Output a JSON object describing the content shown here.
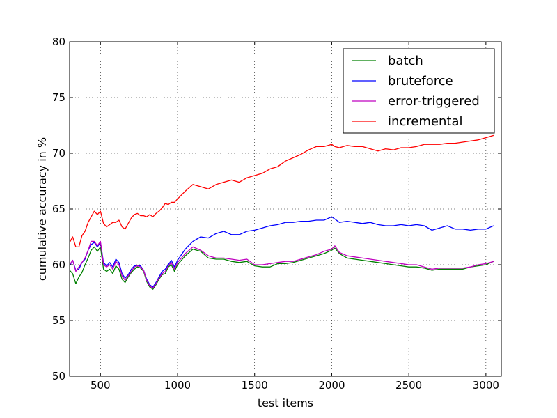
{
  "chart_data": {
    "type": "line",
    "xlabel": "test items",
    "ylabel": "cumulative accuracy in %",
    "xlim": [
      300,
      3100
    ],
    "ylim": [
      50,
      80
    ],
    "xticks": [
      500,
      1000,
      1500,
      2000,
      2500,
      3000
    ],
    "yticks": [
      50,
      55,
      60,
      65,
      70,
      75,
      80
    ],
    "grid": true,
    "legend_position": "top-right",
    "series": [
      {
        "name": "batch",
        "color": "#008000",
        "x": [
          300,
          320,
          340,
          360,
          380,
          400,
          420,
          440,
          460,
          480,
          500,
          520,
          540,
          560,
          580,
          600,
          620,
          640,
          660,
          680,
          700,
          720,
          740,
          760,
          780,
          800,
          820,
          840,
          860,
          880,
          900,
          920,
          940,
          960,
          980,
          1000,
          1050,
          1100,
          1150,
          1200,
          1250,
          1300,
          1350,
          1400,
          1450,
          1500,
          1550,
          1600,
          1650,
          1700,
          1750,
          1800,
          1850,
          1900,
          1950,
          2000,
          2020,
          2050,
          2100,
          2150,
          2200,
          2250,
          2300,
          2350,
          2400,
          2450,
          2500,
          2550,
          2600,
          2650,
          2700,
          2750,
          2800,
          2850,
          2900,
          2950,
          3000,
          3050
        ],
        "y": [
          59.5,
          59.2,
          58.3,
          58.9,
          59.3,
          60.0,
          60.6,
          61.3,
          61.6,
          61.2,
          61.6,
          59.6,
          59.4,
          59.6,
          59.2,
          59.9,
          59.6,
          58.7,
          58.4,
          58.9,
          59.3,
          59.6,
          59.8,
          59.7,
          59.4,
          58.5,
          58.0,
          57.8,
          58.2,
          58.7,
          59.1,
          59.2,
          59.8,
          60.0,
          59.4,
          60.0,
          60.8,
          61.4,
          61.2,
          60.6,
          60.5,
          60.5,
          60.3,
          60.2,
          60.3,
          59.9,
          59.8,
          59.8,
          60.1,
          60.1,
          60.2,
          60.4,
          60.6,
          60.8,
          61.0,
          61.3,
          61.5,
          61.0,
          60.6,
          60.5,
          60.4,
          60.3,
          60.2,
          60.1,
          60.0,
          59.9,
          59.8,
          59.8,
          59.7,
          59.5,
          59.6,
          59.6,
          59.6,
          59.6,
          59.8,
          59.9,
          60.0,
          60.3
        ]
      },
      {
        "name": "bruteforce",
        "color": "#0000ff",
        "x": [
          300,
          320,
          340,
          360,
          380,
          400,
          420,
          440,
          460,
          480,
          500,
          520,
          540,
          560,
          580,
          600,
          620,
          640,
          660,
          680,
          700,
          720,
          740,
          760,
          780,
          800,
          820,
          840,
          860,
          880,
          900,
          920,
          940,
          960,
          980,
          1000,
          1050,
          1100,
          1150,
          1200,
          1250,
          1300,
          1350,
          1400,
          1450,
          1500,
          1550,
          1600,
          1650,
          1700,
          1750,
          1800,
          1850,
          1900,
          1950,
          2000,
          2020,
          2050,
          2100,
          2150,
          2200,
          2250,
          2300,
          2350,
          2400,
          2450,
          2500,
          2550,
          2600,
          2650,
          2700,
          2750,
          2800,
          2850,
          2900,
          2950,
          3000,
          3050
        ],
        "y": [
          59.9,
          60.4,
          59.5,
          59.6,
          60.2,
          60.5,
          61.3,
          61.8,
          62.0,
          61.6,
          62.0,
          60.2,
          59.9,
          60.2,
          59.8,
          60.5,
          60.2,
          59.2,
          58.8,
          59.1,
          59.6,
          59.9,
          59.9,
          59.9,
          59.5,
          58.7,
          58.2,
          58.0,
          58.4,
          58.9,
          59.4,
          59.6,
          60.0,
          60.4,
          59.8,
          60.4,
          61.4,
          62.1,
          62.5,
          62.4,
          62.8,
          63.0,
          62.7,
          62.7,
          63.0,
          63.1,
          63.3,
          63.5,
          63.6,
          63.8,
          63.8,
          63.9,
          63.9,
          64.0,
          64.0,
          64.3,
          64.1,
          63.8,
          63.9,
          63.8,
          63.7,
          63.8,
          63.6,
          63.5,
          63.5,
          63.6,
          63.5,
          63.6,
          63.5,
          63.1,
          63.3,
          63.5,
          63.2,
          63.2,
          63.1,
          63.2,
          63.2,
          63.5
        ]
      },
      {
        "name": "error-triggered",
        "color": "#bf00bf",
        "x": [
          300,
          320,
          340,
          360,
          380,
          400,
          420,
          440,
          460,
          480,
          500,
          520,
          540,
          560,
          580,
          600,
          620,
          640,
          660,
          680,
          700,
          720,
          740,
          760,
          780,
          800,
          820,
          840,
          860,
          880,
          900,
          920,
          940,
          960,
          980,
          1000,
          1050,
          1100,
          1150,
          1200,
          1250,
          1300,
          1350,
          1400,
          1450,
          1500,
          1550,
          1600,
          1650,
          1700,
          1750,
          1800,
          1850,
          1900,
          1950,
          2000,
          2020,
          2050,
          2100,
          2150,
          2200,
          2250,
          2300,
          2350,
          2400,
          2450,
          2500,
          2550,
          2600,
          2650,
          2700,
          2750,
          2800,
          2850,
          2900,
          2950,
          3000,
          3050
        ],
        "y": [
          60.0,
          60.4,
          59.4,
          59.8,
          60.2,
          60.6,
          61.3,
          62.1,
          62.1,
          61.7,
          62.1,
          60.0,
          59.8,
          60.0,
          59.6,
          60.3,
          60.0,
          59.0,
          58.6,
          59.0,
          59.4,
          59.8,
          59.9,
          59.8,
          59.5,
          58.6,
          58.1,
          57.9,
          58.3,
          58.8,
          59.2,
          59.4,
          59.9,
          60.2,
          59.6,
          60.2,
          61.0,
          61.6,
          61.3,
          60.8,
          60.6,
          60.6,
          60.5,
          60.4,
          60.5,
          60.0,
          60.0,
          60.1,
          60.2,
          60.3,
          60.3,
          60.5,
          60.7,
          60.9,
          61.2,
          61.4,
          61.7,
          61.1,
          60.8,
          60.7,
          60.6,
          60.5,
          60.4,
          60.3,
          60.2,
          60.1,
          60.0,
          60.0,
          59.8,
          59.6,
          59.7,
          59.7,
          59.7,
          59.7,
          59.8,
          60.0,
          60.1,
          60.3
        ]
      },
      {
        "name": "incremental",
        "color": "#ff0000",
        "x": [
          300,
          320,
          340,
          360,
          380,
          400,
          420,
          440,
          460,
          480,
          500,
          520,
          540,
          560,
          580,
          600,
          620,
          640,
          660,
          680,
          700,
          720,
          740,
          760,
          780,
          800,
          820,
          840,
          860,
          880,
          900,
          920,
          940,
          960,
          980,
          1000,
          1050,
          1100,
          1150,
          1200,
          1250,
          1300,
          1350,
          1400,
          1450,
          1500,
          1550,
          1600,
          1650,
          1700,
          1750,
          1800,
          1850,
          1900,
          1950,
          2000,
          2020,
          2050,
          2100,
          2150,
          2200,
          2250,
          2300,
          2350,
          2400,
          2450,
          2500,
          2550,
          2600,
          2650,
          2700,
          2750,
          2800,
          2850,
          2900,
          2950,
          3000,
          3050
        ],
        "y": [
          62.0,
          62.5,
          61.6,
          61.6,
          62.6,
          63.0,
          63.8,
          64.3,
          64.8,
          64.5,
          64.8,
          63.7,
          63.4,
          63.6,
          63.8,
          63.8,
          64.0,
          63.4,
          63.2,
          63.7,
          64.2,
          64.5,
          64.6,
          64.4,
          64.4,
          64.3,
          64.5,
          64.3,
          64.6,
          64.8,
          65.1,
          65.5,
          65.4,
          65.6,
          65.6,
          65.9,
          66.6,
          67.2,
          67.0,
          66.8,
          67.2,
          67.4,
          67.6,
          67.4,
          67.8,
          68.0,
          68.2,
          68.6,
          68.8,
          69.3,
          69.6,
          69.9,
          70.3,
          70.6,
          70.6,
          70.8,
          70.6,
          70.5,
          70.7,
          70.6,
          70.6,
          70.4,
          70.2,
          70.4,
          70.3,
          70.5,
          70.5,
          70.6,
          70.8,
          70.8,
          70.8,
          70.9,
          70.9,
          71.0,
          71.1,
          71.2,
          71.4,
          71.6
        ]
      }
    ]
  }
}
